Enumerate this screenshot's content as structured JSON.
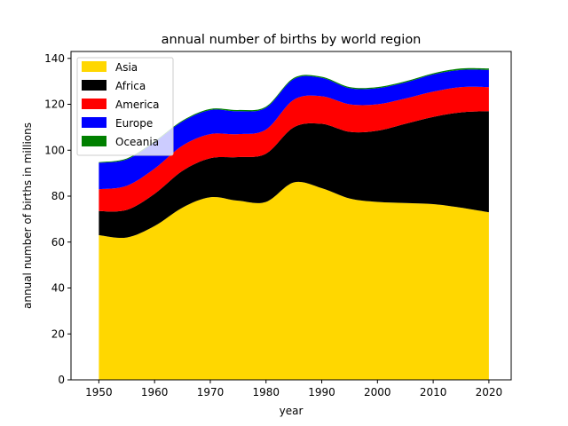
{
  "chart_data": {
    "type": "area",
    "stacked": true,
    "title": "annual number of births by world region",
    "xlabel": "year",
    "ylabel": "annual number of births in millions",
    "xlim": [
      1945,
      2024
    ],
    "ylim": [
      0,
      143
    ],
    "x_ticks": [
      1950,
      1960,
      1970,
      1980,
      1990,
      2000,
      2010,
      2020
    ],
    "y_ticks": [
      0,
      20,
      40,
      60,
      80,
      100,
      120,
      140
    ],
    "grid": false,
    "legend_position": "top-left",
    "x": [
      1950,
      1955,
      1960,
      1965,
      1970,
      1975,
      1980,
      1985,
      1990,
      1995,
      2000,
      2005,
      2010,
      2015,
      2020
    ],
    "series": [
      {
        "name": "Asia",
        "color": "#ffd700",
        "values": [
          63,
          62,
          67,
          75,
          79.5,
          78,
          77.5,
          86,
          83.5,
          79,
          77.5,
          77,
          76.5,
          75,
          73
        ]
      },
      {
        "name": "Africa",
        "color": "#000000",
        "values": [
          10.5,
          12,
          14,
          16,
          17,
          19,
          21,
          24,
          28,
          29,
          31,
          34.5,
          38,
          41.5,
          44
        ]
      },
      {
        "name": "America",
        "color": "#ff0000",
        "values": [
          9.5,
          10.5,
          11,
          11,
          10.5,
          10,
          10.5,
          12,
          12,
          12,
          11.5,
          11,
          11,
          11,
          10.5
        ]
      },
      {
        "name": "Europe",
        "color": "#0000ff",
        "values": [
          11.5,
          11.5,
          11.5,
          10.5,
          10.5,
          10,
          9.5,
          9,
          8,
          7,
          7,
          7,
          7.5,
          7.5,
          7.5
        ]
      },
      {
        "name": "Oceania",
        "color": "#008000",
        "values": [
          0.3,
          0.4,
          0.4,
          0.4,
          0.5,
          0.5,
          0.5,
          0.5,
          0.5,
          0.5,
          0.5,
          0.5,
          0.5,
          0.6,
          0.6
        ]
      }
    ]
  }
}
